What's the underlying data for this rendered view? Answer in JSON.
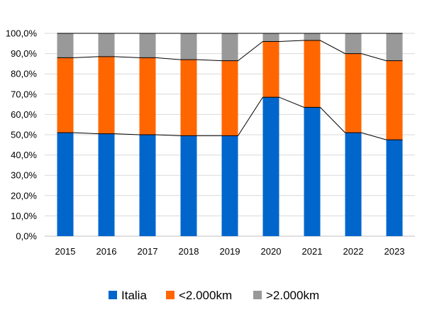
{
  "chart_data": {
    "type": "bar",
    "stacked": true,
    "categories": [
      "2015",
      "2016",
      "2017",
      "2018",
      "2019",
      "2020",
      "2021",
      "2022",
      "2023"
    ],
    "series": [
      {
        "name": "Italia",
        "color": "#0066CC",
        "values": [
          51.0,
          50.5,
          50.0,
          49.5,
          49.5,
          68.5,
          63.5,
          51.0,
          47.5
        ]
      },
      {
        "name": "<2.000km",
        "color": "#FF6600",
        "values": [
          37.0,
          38.0,
          38.0,
          37.5,
          37.0,
          27.5,
          33.0,
          39.0,
          39.0
        ]
      },
      {
        "name": ">2.000km",
        "color": "#999999",
        "values": [
          12.0,
          11.5,
          12.0,
          13.0,
          13.5,
          4.0,
          3.5,
          10.0,
          13.5
        ]
      }
    ],
    "series_lines": true,
    "ylim": [
      0,
      100
    ],
    "y_ticks": [
      "0,0%",
      "10,0%",
      "20,0%",
      "30,0%",
      "40,0%",
      "50,0%",
      "60,0%",
      "70,0%",
      "80,0%",
      "90,0%",
      "100,0%"
    ],
    "title": "",
    "xlabel": "",
    "ylabel": "",
    "grid": true,
    "legend_position": "bottom",
    "colors": {
      "grid": "#d9d9d9",
      "axis": "#bfbfbf",
      "series_line": "#000000"
    }
  }
}
